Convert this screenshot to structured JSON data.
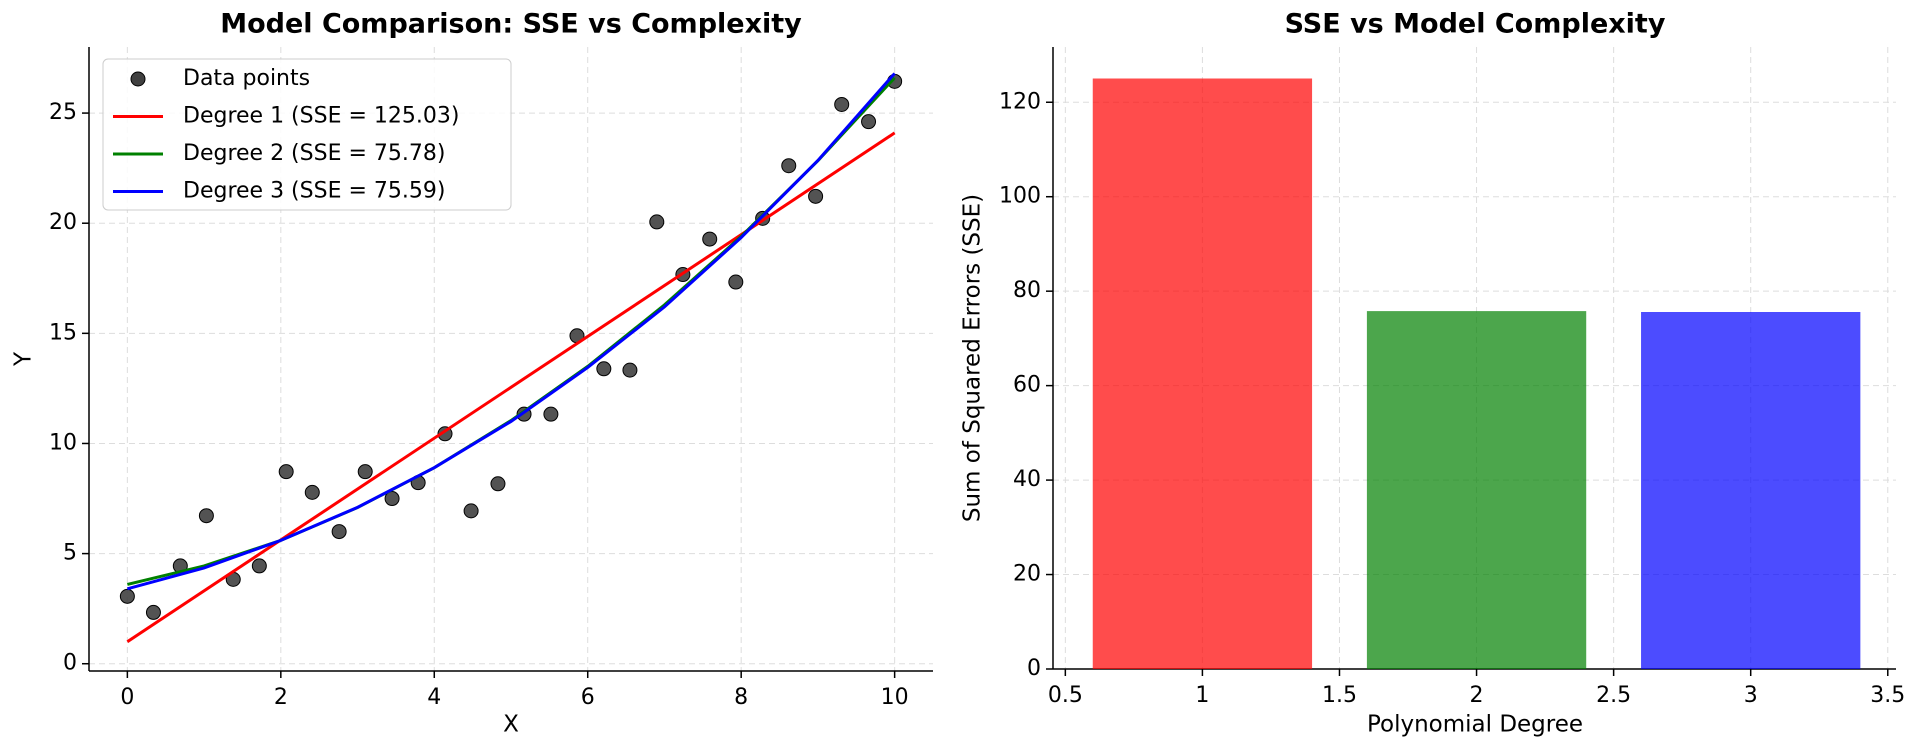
{
  "chart_data": [
    {
      "type": "scatter",
      "title": "Model Comparison: SSE vs Complexity",
      "x_label": "X",
      "y_label": "Y",
      "xlim": [
        -0.5,
        10.5
      ],
      "ylim": [
        -0.33,
        28
      ],
      "xticks": [
        0,
        2,
        4,
        6,
        8,
        10
      ],
      "yticks": [
        0,
        5,
        10,
        15,
        20,
        25
      ],
      "grid": true,
      "legend": "upper left",
      "series": [
        {
          "name": "Data points",
          "type": "scatter",
          "color": "#404040",
          "x": [
            0,
            0.34,
            0.69,
            1.03,
            1.38,
            1.72,
            2.07,
            2.41,
            2.76,
            3.1,
            3.45,
            3.79,
            4.14,
            4.48,
            4.83,
            5.17,
            5.52,
            5.86,
            6.21,
            6.55,
            6.9,
            7.24,
            7.59,
            7.93,
            8.28,
            8.62,
            8.97,
            9.31,
            9.66,
            10
          ],
          "values": [
            3.06,
            2.33,
            4.44,
            6.72,
            3.83,
            4.44,
            8.72,
            7.78,
            6.0,
            8.72,
            7.5,
            8.22,
            10.44,
            6.94,
            8.17,
            11.33,
            11.33,
            14.89,
            13.39,
            13.33,
            20.06,
            17.67,
            19.28,
            17.33,
            20.22,
            22.61,
            21.22,
            25.39,
            24.61,
            26.44
          ]
        },
        {
          "name": "Degree 1 (SSE = 125.03)",
          "type": "line",
          "color": "#ff0000",
          "x": [
            0,
            10
          ],
          "values": [
            1.0,
            24.1
          ]
        },
        {
          "name": "Degree 2 (SSE = 75.78)",
          "type": "line",
          "color": "#008000",
          "x": [
            0,
            1,
            2,
            3,
            4,
            5,
            6,
            7,
            8,
            9,
            10
          ],
          "values": [
            3.6,
            4.44,
            5.6,
            7.09,
            8.9,
            11.04,
            13.5,
            16.29,
            19.4,
            22.84,
            26.6
          ]
        },
        {
          "name": "Degree 3 (SSE = 75.59)",
          "type": "line",
          "color": "#0000ff",
          "x": [
            0,
            1,
            2,
            3,
            4,
            5,
            6,
            7,
            8,
            9,
            10
          ],
          "values": [
            3.4,
            4.35,
            5.6,
            7.1,
            8.9,
            11.0,
            13.45,
            16.2,
            19.35,
            22.85,
            26.8
          ]
        }
      ]
    },
    {
      "type": "bar",
      "title": "SSE vs Model Complexity",
      "x_label": "Polynomial Degree",
      "y_label": "Sum of Squared Errors (SSE)",
      "xlim": [
        0.455,
        3.53
      ],
      "ylim": [
        0,
        131.7
      ],
      "xticks": [
        0.5,
        1.0,
        1.5,
        2.0,
        2.5,
        3.0,
        3.5
      ],
      "yticks": [
        0,
        20,
        40,
        60,
        80,
        100,
        120
      ],
      "grid": true,
      "x": [
        1,
        2,
        3
      ],
      "values": [
        125.03,
        75.78,
        75.59
      ],
      "colors": [
        "#ff0000",
        "#008000",
        "#0000ff"
      ]
    }
  ]
}
